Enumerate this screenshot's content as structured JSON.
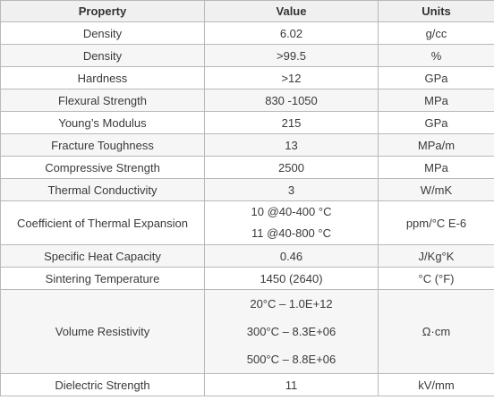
{
  "headers": {
    "property": "Property",
    "value": "Value",
    "units": "Units"
  },
  "rows": [
    {
      "property": "Density",
      "value": "6.02",
      "units": "g/cc"
    },
    {
      "property": "Density",
      "value": ">99.5",
      "units": "%"
    },
    {
      "property": "Hardness",
      "value": ">12",
      "units": "GPa"
    },
    {
      "property": "Flexural Strength",
      "value": "830 -1050",
      "units": "MPa"
    },
    {
      "property": "Young’s Modulus",
      "value": "215",
      "units": "GPa"
    },
    {
      "property": "Fracture Toughness",
      "value": "13",
      "units": "MPa/m"
    },
    {
      "property": "Compressive Strength",
      "value": "2500",
      "units": "MPa"
    },
    {
      "property": "Thermal Conductivity",
      "value": "3",
      "units": "W/mK"
    },
    {
      "property": "Coefficient of Thermal Expansion",
      "values": [
        "10 @40-400 °C",
        "11 @40-800 °C"
      ],
      "units": "ppm/°C E-6"
    },
    {
      "property": "Specific Heat Capacity",
      "value": "0.46",
      "units": "J/Kg°K"
    },
    {
      "property": "Sintering Temperature",
      "value": "1450 (2640)",
      "units": "°C (°F)"
    },
    {
      "property": "Volume Resistivity",
      "values": [
        "20°C – 1.0E+12",
        "300°C – 8.3E+06",
        "500°C – 8.8E+06"
      ],
      "units": "Ω·cm"
    },
    {
      "property": "Dielectric Strength",
      "value": "11",
      "units": "kV/mm"
    }
  ]
}
